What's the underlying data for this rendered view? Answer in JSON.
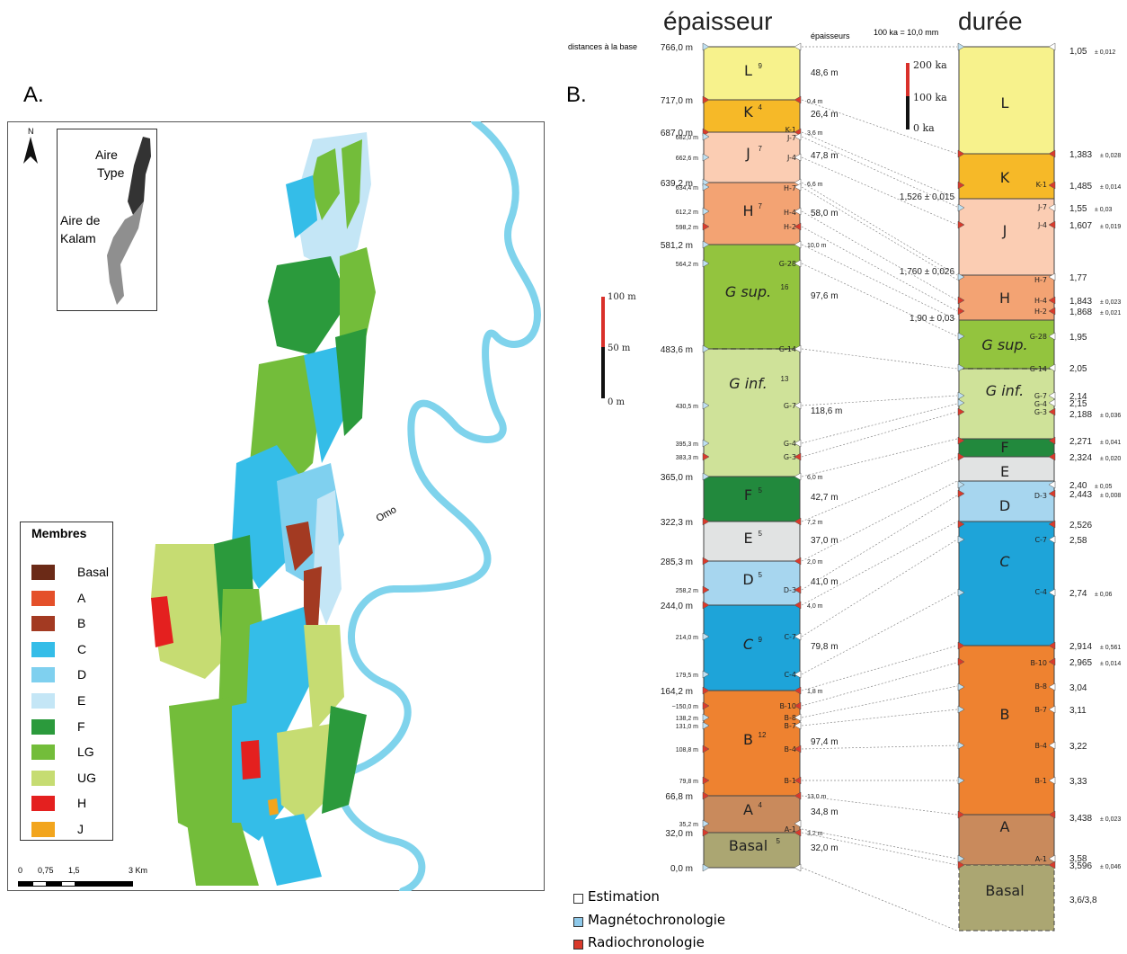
{
  "panel_a": {
    "label": "A.",
    "north": "N",
    "inset": {
      "type_area": [
        "Aire",
        "Type"
      ],
      "kalam_area": [
        "Aire de",
        "Kalam"
      ]
    },
    "river": "Omo",
    "legend": {
      "title": "Membres",
      "items": [
        {
          "label": "Basal",
          "color": "#6b2a17"
        },
        {
          "label": "A",
          "color": "#e4502a"
        },
        {
          "label": "B",
          "color": "#a33a22"
        },
        {
          "label": "C",
          "color": "#34bde8"
        },
        {
          "label": "D",
          "color": "#7fd0ef"
        },
        {
          "label": "E",
          "color": "#c4e6f6"
        },
        {
          "label": "F",
          "color": "#2b9a3c"
        },
        {
          "label": "LG",
          "color": "#73bd3a"
        },
        {
          "label": "UG",
          "color": "#c6dc72"
        },
        {
          "label": "H",
          "color": "#e4201f"
        },
        {
          "label": "J",
          "color": "#f2a51d"
        }
      ]
    },
    "scale": {
      "ticks": [
        "0",
        "0,75",
        "1,5",
        "3 Km"
      ]
    }
  },
  "panel_b": {
    "label": "B.",
    "thickness_title": "épaisseur",
    "duration_title": "durée",
    "distances_label": "distances à la base",
    "epaisseurs_label": "épaisseurs",
    "duration_scale_note": "100 ka = 10,0 mm",
    "duration_scale": [
      "200 ka",
      "100 ka",
      "0 ka"
    ],
    "thickness_scale": [
      "100 m",
      "50 m",
      "0 m"
    ],
    "column_members": [
      {
        "label": "L",
        "sup": "9",
        "color": "#f7f28c"
      },
      {
        "label": "K",
        "sup": "4",
        "color": "#f6b928"
      },
      {
        "label": "J",
        "sup": "7",
        "color": "#fbcdb3"
      },
      {
        "label": "H",
        "sup": "7",
        "color": "#f3a373"
      },
      {
        "label": "G sup.",
        "sup": "16",
        "color": "#93c43e"
      },
      {
        "label": "G inf.",
        "sup": "13",
        "color": "#cfe299"
      },
      {
        "label": "F",
        "sup": "5",
        "color": "#22893d"
      },
      {
        "label": "E",
        "sup": "5",
        "color": "#e1e3e3"
      },
      {
        "label": "D",
        "sup": "5",
        "color": "#a7d6ef"
      },
      {
        "label": "C",
        "sup": "9",
        "color": "#1ea4d9"
      },
      {
        "label": "B",
        "sup": "12",
        "color": "#ee8230"
      },
      {
        "label": "A",
        "sup": "4",
        "color": "#c98a5c"
      },
      {
        "label": "Basal",
        "sup": "5",
        "color": "#aba672"
      }
    ],
    "major_distances": [
      "766,0 m",
      "717,0 m",
      "687,0 m",
      "639,2 m",
      "581,2 m",
      "483,6 m",
      "365,0 m",
      "322,3 m",
      "285,3 m",
      "244,0 m",
      "164,2 m",
      "66,8 m",
      "32,0 m",
      "0,0 m"
    ],
    "minor_distances": [
      "682,0 m",
      "662,6 m",
      "634,4 m",
      "612,2 m",
      "598,2 m",
      "564,2 m",
      "430,5 m",
      "395,3 m",
      "383,3 m",
      "258,2 m",
      "214,0 m",
      "179,5 m",
      "~150,0 m",
      "138,2 m",
      "131,0 m",
      "108,8 m",
      "79,8 m",
      "35,2 m"
    ],
    "thicknesses": [
      "48,6 m",
      "26,4 m",
      "47,8 m",
      "58,0 m",
      "97,6 m",
      "118,6 m",
      "42,7 m",
      "37,0 m",
      "41,0 m",
      "79,8 m",
      "97,4 m",
      "34,8 m",
      "32,0 m"
    ],
    "gap_thicknesses": [
      "0,4 m",
      "3,6 m",
      "6,6 m",
      "10,0 m",
      "6,0 m",
      "7,2 m",
      "2,0 m",
      "4,0 m",
      "1,8 m",
      "13,0 m",
      "3,2 m"
    ],
    "markers": [
      "K-1",
      "J-7",
      "J-4",
      "H-7",
      "H-4",
      "H-2",
      "G-28",
      "G-14",
      "G-7",
      "G-4",
      "G-3",
      "D-3",
      "C-7",
      "C-4",
      "B-10",
      "B-8",
      "B-7",
      "B-4",
      "B-1",
      "A-1"
    ],
    "duration_members": [
      "L",
      "K",
      "J",
      "H",
      "G sup.",
      "G inf.",
      "F",
      "E",
      "D",
      "C",
      "B",
      "A",
      "Basal"
    ],
    "duration_markers": [
      "K-1",
      "J-7",
      "J-4",
      "H-7",
      "H-4",
      "H-2",
      "G-28",
      "G-14",
      "G-7",
      "G-4",
      "G-3",
      "D-3",
      "C-7",
      "C-4",
      "B-10",
      "B-8",
      "B-7",
      "B-4",
      "B-1",
      "A-1"
    ],
    "ages": [
      "1,05",
      "1,383",
      "1,485",
      "1,55",
      "1,607",
      "1,77",
      "1,843",
      "1,868",
      "1,95",
      "2,05",
      "2,14",
      "2,15",
      "2,188",
      "2,271",
      "2,324",
      "2,40",
      "2,443",
      "2,526",
      "2,58",
      "2,74",
      "2,914",
      "2,965",
      "3,04",
      "3,11",
      "3,22",
      "3,33",
      "3,438",
      "3,58",
      "3,596",
      "3,6/3,8"
    ],
    "age_errors": [
      "± 0,012",
      "± 0,028",
      "± 0,014",
      "± 0,03",
      "± 0,019",
      "± 0,023",
      "± 0,021",
      "± 0,036",
      "± 0,041",
      "± 0,020",
      "± 0,05",
      "± 0,008",
      "± 0,06",
      "± 0,561",
      "± 0,014",
      "± 0,023",
      "± 0,046"
    ],
    "mid_ages": [
      "1,526 ± 0,015",
      "1,760 ± 0,026",
      "1,90 ± 0,03"
    ],
    "legend": {
      "estimation": "Estimation",
      "magneto": "Magnétochronologie",
      "radio": "Radiochronologie",
      "colors": {
        "estimation": "#ffffff",
        "magneto": "#8ec9ea",
        "radio": "#d93a2b"
      }
    }
  }
}
